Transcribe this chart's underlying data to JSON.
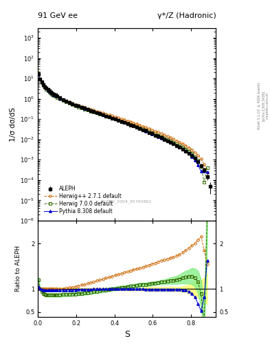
{
  "title_left": "91 GeV ee",
  "title_right": "γ*/Z (Hadronic)",
  "ylabel_main": "1/σ dσ/dS",
  "ylabel_ratio": "Ratio to ALEPH",
  "xlabel": "S",
  "watermark": "ALEPH_2004_S5765862",
  "right_label": "Rivet 3.1.10, ≥ 400k events\n[arXiv:1306.3436]\nmcplots.cern.ch",
  "aleph_x": [
    0.004,
    0.012,
    0.02,
    0.028,
    0.036,
    0.044,
    0.052,
    0.06,
    0.068,
    0.076,
    0.084,
    0.092,
    0.1,
    0.116,
    0.132,
    0.148,
    0.164,
    0.18,
    0.196,
    0.212,
    0.228,
    0.244,
    0.26,
    0.276,
    0.292,
    0.308,
    0.324,
    0.34,
    0.356,
    0.372,
    0.388,
    0.404,
    0.42,
    0.436,
    0.452,
    0.468,
    0.484,
    0.5,
    0.516,
    0.532,
    0.548,
    0.564,
    0.58,
    0.596,
    0.612,
    0.628,
    0.644,
    0.66,
    0.676,
    0.692,
    0.708,
    0.724,
    0.74,
    0.756,
    0.772,
    0.788,
    0.804,
    0.82,
    0.836,
    0.852,
    0.868,
    0.884,
    0.9
  ],
  "aleph_y": [
    16.0,
    9.5,
    6.8,
    5.2,
    4.1,
    3.4,
    2.8,
    2.4,
    2.1,
    1.85,
    1.65,
    1.5,
    1.35,
    1.1,
    0.92,
    0.78,
    0.67,
    0.58,
    0.5,
    0.44,
    0.385,
    0.34,
    0.3,
    0.265,
    0.235,
    0.208,
    0.184,
    0.163,
    0.144,
    0.128,
    0.113,
    0.1,
    0.088,
    0.077,
    0.068,
    0.06,
    0.052,
    0.046,
    0.04,
    0.035,
    0.03,
    0.026,
    0.022,
    0.019,
    0.016,
    0.014,
    0.012,
    0.01,
    0.0085,
    0.0072,
    0.006,
    0.005,
    0.0042,
    0.0034,
    0.0027,
    0.0021,
    0.0016,
    0.00115,
    0.0008,
    0.00052,
    0.00032,
    0.00015,
    5e-05
  ],
  "aleph_yerr": [
    0.5,
    0.3,
    0.2,
    0.15,
    0.12,
    0.1,
    0.08,
    0.07,
    0.06,
    0.05,
    0.04,
    0.04,
    0.035,
    0.028,
    0.022,
    0.018,
    0.015,
    0.013,
    0.011,
    0.01,
    0.009,
    0.008,
    0.007,
    0.006,
    0.006,
    0.005,
    0.005,
    0.004,
    0.004,
    0.003,
    0.003,
    0.003,
    0.002,
    0.002,
    0.002,
    0.002,
    0.002,
    0.001,
    0.001,
    0.001,
    0.001,
    0.001,
    0.001,
    0.0008,
    0.0007,
    0.0006,
    0.0005,
    0.0004,
    0.0004,
    0.0003,
    0.0003,
    0.0002,
    0.0002,
    0.0002,
    0.0002,
    0.0002,
    0.0002,
    0.0002,
    0.00015,
    0.0001,
    8e-05,
    5e-05,
    3e-05
  ],
  "herwig_x": [
    0.004,
    0.012,
    0.02,
    0.028,
    0.036,
    0.044,
    0.052,
    0.06,
    0.068,
    0.076,
    0.084,
    0.092,
    0.1,
    0.116,
    0.132,
    0.148,
    0.164,
    0.18,
    0.196,
    0.212,
    0.228,
    0.244,
    0.26,
    0.276,
    0.292,
    0.308,
    0.324,
    0.34,
    0.356,
    0.372,
    0.388,
    0.404,
    0.42,
    0.436,
    0.452,
    0.468,
    0.484,
    0.5,
    0.516,
    0.532,
    0.548,
    0.564,
    0.58,
    0.596,
    0.612,
    0.628,
    0.644,
    0.66,
    0.676,
    0.692,
    0.708,
    0.724,
    0.74,
    0.756,
    0.772,
    0.788,
    0.804,
    0.82,
    0.836,
    0.852,
    0.868,
    0.884
  ],
  "herwig_ratio": [
    1.0,
    1.0,
    1.0,
    1.0,
    1.0,
    1.0,
    1.0,
    1.0,
    1.0,
    1.0,
    1.0,
    1.0,
    1.0,
    1.0,
    1.01,
    1.02,
    1.03,
    1.04,
    1.05,
    1.07,
    1.09,
    1.1,
    1.12,
    1.14,
    1.16,
    1.18,
    1.2,
    1.22,
    1.24,
    1.26,
    1.28,
    1.3,
    1.32,
    1.34,
    1.36,
    1.38,
    1.4,
    1.42,
    1.44,
    1.46,
    1.48,
    1.5,
    1.52,
    1.55,
    1.57,
    1.6,
    1.62,
    1.64,
    1.66,
    1.68,
    1.7,
    1.73,
    1.76,
    1.8,
    1.85,
    1.9,
    1.95,
    2.0,
    2.08,
    2.15,
    1.85,
    1.55
  ],
  "herwig7_ratio": [
    1.2,
    1.0,
    0.95,
    0.9,
    0.88,
    0.87,
    0.87,
    0.87,
    0.87,
    0.87,
    0.87,
    0.87,
    0.87,
    0.87,
    0.88,
    0.88,
    0.88,
    0.89,
    0.89,
    0.9,
    0.9,
    0.91,
    0.92,
    0.93,
    0.94,
    0.95,
    0.96,
    0.97,
    0.98,
    0.99,
    1.0,
    1.01,
    1.02,
    1.03,
    1.04,
    1.05,
    1.06,
    1.07,
    1.08,
    1.09,
    1.1,
    1.1,
    1.11,
    1.12,
    1.13,
    1.14,
    1.15,
    1.16,
    1.17,
    1.18,
    1.19,
    1.2,
    1.22,
    1.24,
    1.26,
    1.27,
    1.28,
    1.25,
    1.15,
    0.9,
    0.25,
    2.6
  ],
  "herwig7_ratio_err": [
    0.05,
    0.04,
    0.04,
    0.04,
    0.04,
    0.04,
    0.04,
    0.04,
    0.04,
    0.04,
    0.04,
    0.04,
    0.04,
    0.04,
    0.04,
    0.04,
    0.04,
    0.04,
    0.04,
    0.04,
    0.04,
    0.04,
    0.04,
    0.04,
    0.04,
    0.04,
    0.04,
    0.04,
    0.04,
    0.04,
    0.04,
    0.04,
    0.04,
    0.04,
    0.04,
    0.04,
    0.04,
    0.04,
    0.04,
    0.04,
    0.04,
    0.04,
    0.04,
    0.04,
    0.04,
    0.04,
    0.05,
    0.05,
    0.06,
    0.07,
    0.08,
    0.09,
    0.1,
    0.12,
    0.14,
    0.15,
    0.18,
    0.2,
    0.25,
    0.3,
    0.4,
    0.6
  ],
  "pythia_ratio": [
    1.05,
    1.0,
    0.99,
    0.98,
    0.97,
    0.97,
    0.97,
    0.97,
    0.97,
    0.97,
    0.97,
    0.98,
    0.98,
    0.98,
    0.98,
    0.98,
    0.98,
    0.98,
    0.98,
    0.99,
    0.99,
    0.99,
    0.99,
    0.99,
    1.0,
    1.0,
    1.0,
    1.0,
    1.0,
    1.0,
    1.0,
    1.0,
    1.0,
    1.0,
    1.0,
    1.0,
    1.0,
    1.0,
    1.0,
    1.0,
    1.0,
    0.99,
    0.99,
    0.99,
    0.99,
    0.99,
    0.99,
    0.99,
    0.99,
    0.99,
    0.99,
    0.99,
    0.99,
    0.98,
    0.97,
    0.95,
    0.9,
    0.82,
    0.68,
    0.52,
    0.82,
    1.62
  ],
  "herwig_color": "#cc6600",
  "herwig7_color": "#336600",
  "pythia_color": "#0000cc",
  "aleph_color": "#000000",
  "band_yellow": "#ffff88",
  "band_green": "#88ee88",
  "ylim_main": [
    1e-06,
    3000
  ],
  "ylim_ratio": [
    0.39,
    2.5
  ],
  "xlim": [
    0.0,
    0.93
  ],
  "ratio_yticks": [
    0.5,
    1.0,
    2.0
  ],
  "ratio_ytick_labels": [
    "0.5",
    "1",
    "2"
  ]
}
